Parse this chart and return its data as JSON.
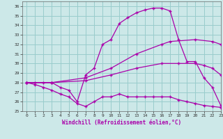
{
  "xlabel": "Windchill (Refroidissement éolien,°C)",
  "bg_color": "#cce8e8",
  "line_color": "#aa00aa",
  "grid_color": "#99cccc",
  "xlim": [
    -0.5,
    23
  ],
  "ylim": [
    25,
    36.5
  ],
  "ytick_min": 25,
  "ytick_max": 36,
  "xticks": [
    0,
    1,
    2,
    3,
    4,
    5,
    6,
    7,
    8,
    9,
    10,
    11,
    12,
    13,
    14,
    15,
    16,
    17,
    18,
    19,
    20,
    21,
    22,
    23
  ],
  "series": [
    {
      "x": [
        0,
        1,
        2,
        3,
        4,
        5,
        6,
        7,
        8,
        9,
        10,
        11,
        12,
        13,
        14,
        15,
        16,
        17,
        18,
        19,
        20,
        21,
        22,
        23
      ],
      "y": [
        28.0,
        28.0,
        28.0,
        28.0,
        27.5,
        27.2,
        26.0,
        28.8,
        29.5,
        32.0,
        32.5,
        34.2,
        34.8,
        35.3,
        35.6,
        35.8,
        35.8,
        35.5,
        32.5,
        30.2,
        30.2,
        28.5,
        27.5,
        25.6
      ]
    },
    {
      "x": [
        0,
        1,
        2,
        3,
        4,
        5,
        6,
        7,
        8,
        9,
        10,
        11,
        12,
        13,
        14,
        15,
        16,
        17,
        18,
        19,
        20,
        21,
        22,
        23
      ],
      "y": [
        28.0,
        27.8,
        27.5,
        27.2,
        26.8,
        26.5,
        25.8,
        25.5,
        26.0,
        26.5,
        26.5,
        26.8,
        26.5,
        26.5,
        26.5,
        26.5,
        26.5,
        26.5,
        26.2,
        26.0,
        25.8,
        25.6,
        25.5,
        25.4
      ]
    },
    {
      "x": [
        0,
        3,
        7,
        10,
        13,
        16,
        17,
        20,
        22,
        23
      ],
      "y": [
        28.0,
        28.0,
        28.5,
        29.5,
        31.0,
        32.0,
        32.3,
        32.5,
        32.3,
        32.0
      ]
    },
    {
      "x": [
        0,
        3,
        7,
        10,
        13,
        16,
        18,
        20,
        21,
        22,
        23
      ],
      "y": [
        28.0,
        28.0,
        28.2,
        28.8,
        29.5,
        30.0,
        30.0,
        30.0,
        29.8,
        29.5,
        28.8
      ]
    }
  ]
}
